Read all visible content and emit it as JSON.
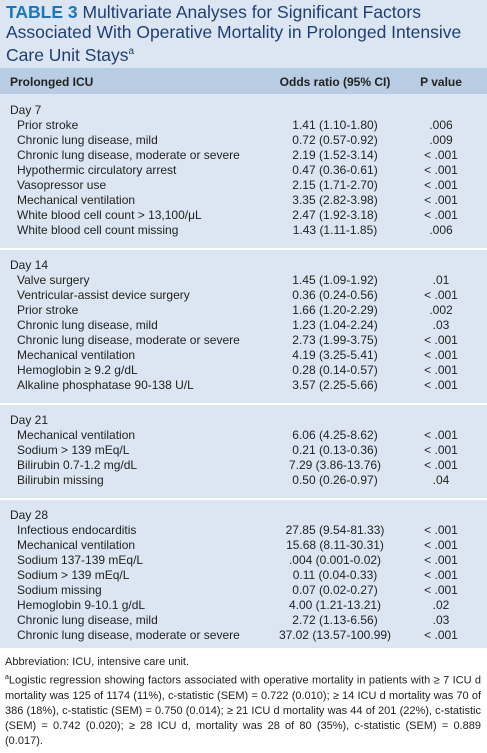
{
  "title": {
    "label": "TABLE 3",
    "text": "Multivariate Analyses for Significant Factors Associated With Operative Mortality in Prolonged Intensive Care Unit Stays",
    "note": "a"
  },
  "table": {
    "header": [
      "Prolonged ICU",
      "Odds ratio (95% CI)",
      "P value"
    ],
    "sections": [
      {
        "label": "Day 7",
        "rows": [
          [
            "Prior stroke",
            "1.41 (1.10-1.80)",
            ".006"
          ],
          [
            "Chronic lung disease, mild",
            "0.72 (0.57-0.92)",
            ".009"
          ],
          [
            "Chronic lung disease, moderate or severe",
            "2.19 (1.52-3.14)",
            "< .001"
          ],
          [
            "Hypothermic circulatory arrest",
            "0.47 (0.36-0.61)",
            "< .001"
          ],
          [
            "Vasopressor use",
            "2.15 (1.71-2.70)",
            "< .001"
          ],
          [
            "Mechanical ventilation",
            "3.35 (2.82-3.98)",
            "< .001"
          ],
          [
            "White blood cell count > 13,100/μL",
            "2.47 (1.92-3.18)",
            "< .001"
          ],
          [
            "White blood cell count missing",
            "1.43 (1.11-1.85)",
            ".006"
          ]
        ]
      },
      {
        "label": "Day 14",
        "rows": [
          [
            "Valve surgery",
            "1.45 (1.09-1.92)",
            ".01"
          ],
          [
            "Ventricular-assist device surgery",
            "0.36 (0.24-0.56)",
            "< .001"
          ],
          [
            "Prior stroke",
            "1.66 (1.20-2.29)",
            ".002"
          ],
          [
            "Chronic lung disease, mild",
            "1.23 (1.04-2.24)",
            ".03"
          ],
          [
            "Chronic lung disease, moderate or severe",
            "2.73 (1.99-3.75)",
            "< .001"
          ],
          [
            "Mechanical ventilation",
            "4.19 (3.25-5.41)",
            "< .001"
          ],
          [
            "Hemoglobin ≥ 9.2 g/dL",
            "0.28 (0.14-0.57)",
            "< .001"
          ],
          [
            "Alkaline phosphatase 90-138 U/L",
            "3.57 (2.25-5.66)",
            "< .001"
          ]
        ]
      },
      {
        "label": "Day 21",
        "rows": [
          [
            "Mechanical ventilation",
            "6.06 (4.25-8.62)",
            "< .001"
          ],
          [
            "Sodium > 139 mEq/L",
            "0.21 (0.13-0.36)",
            "< .001"
          ],
          [
            "Bilirubin 0.7-1.2 mg/dL",
            "7.29 (3.86-13.76)",
            "< .001"
          ],
          [
            "Bilirubin missing",
            "0.50 (0.26-0.97)",
            ".04"
          ]
        ]
      },
      {
        "label": "Day 28",
        "rows": [
          [
            "Infectious endocarditis",
            "27.85 (9.54-81.33)",
            "< .001"
          ],
          [
            "Mechanical ventilation",
            "15.68 (8.11-30.31)",
            "< .001"
          ],
          [
            "Sodium 137-139 mEq/L",
            ".004 (0.001-0.02)",
            "< .001"
          ],
          [
            "Sodium > 139 mEq/L",
            "0.11 (0.04-0.33)",
            "< .001"
          ],
          [
            "Sodium missing",
            "0.07 (0.02-0.27)",
            "< .001"
          ],
          [
            "Hemoglobin 9-10.1 g/dL",
            "4.00 (1.21-13.21)",
            ".02"
          ],
          [
            "Chronic lung disease, mild",
            "2.72 (1.13-6.56)",
            ".03"
          ],
          [
            "Chronic lung disease, moderate or severe",
            "37.02 (13.57-100.99)",
            "< .001"
          ]
        ]
      }
    ]
  },
  "footnotes": {
    "abbreviation": "Abbreviation: ICU, intensive care unit.",
    "a": {
      "mark": "a",
      "text": "Logistic regression showing factors associated with operative mortality in patients with ≥ 7 ICU d mortality was 125 of 1174 (11%), c-statistic (SEM) = 0.722 (0.010); ≥ 14 ICU d mortality was 70 of 386 (18%), c-statistic (SEM) = 0.750 (0.014); ≥ 21 ICU d mortality was 44 of 201 (22%), c-statistic (SEM) = 0.742 (0.020); ≥ 28 ICU d, mortality was 28 of 80 (35%), c-statistic (SEM) = 0.889 (0.017)."
    }
  }
}
